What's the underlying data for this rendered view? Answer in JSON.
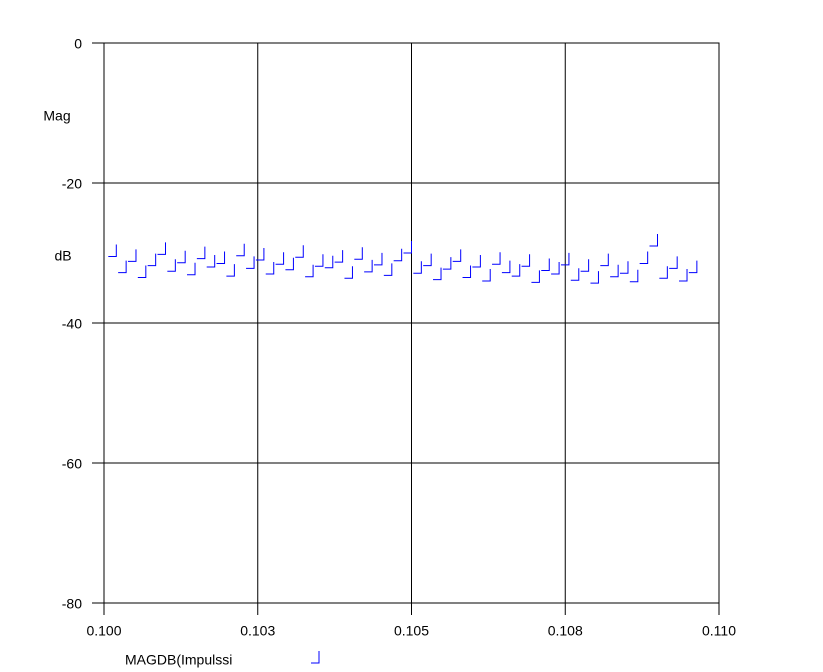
{
  "chart_data": {
    "type": "scatter",
    "y_label_top": "Mag",
    "y_label_bottom": "dB",
    "xlim": [
      0.1,
      0.11
    ],
    "xticks": [
      {
        "value": 0.1,
        "label": "0.100"
      },
      {
        "value": 0.1025,
        "label": "0.103"
      },
      {
        "value": 0.105,
        "label": "0.105"
      },
      {
        "value": 0.1075,
        "label": "0.108"
      },
      {
        "value": 0.11,
        "label": "0.110"
      }
    ],
    "ylim": [
      -80,
      0
    ],
    "yticks": [
      -80,
      -60,
      -40,
      -20,
      0
    ],
    "grid": true,
    "series": [
      {
        "name": "MAGDB(Impulssi",
        "color": "#0000ff",
        "x": [
          0.1002,
          0.10036,
          0.10052,
          0.10068,
          0.10084,
          0.101,
          0.10116,
          0.10132,
          0.10148,
          0.10164,
          0.1018,
          0.10196,
          0.10212,
          0.10228,
          0.10244,
          0.1026,
          0.10276,
          0.10292,
          0.10308,
          0.10324,
          0.1034,
          0.10356,
          0.10372,
          0.10388,
          0.10404,
          0.1042,
          0.10436,
          0.10452,
          0.10468,
          0.10484,
          0.105,
          0.10516,
          0.10532,
          0.10548,
          0.10564,
          0.1058,
          0.10596,
          0.10612,
          0.10628,
          0.10644,
          0.1066,
          0.10676,
          0.10692,
          0.10708,
          0.10724,
          0.1074,
          0.10756,
          0.10772,
          0.10788,
          0.10804,
          0.1082,
          0.10836,
          0.10852,
          0.10868,
          0.10884,
          0.109,
          0.10916,
          0.10932,
          0.10948,
          0.10964
        ],
        "values": [
          -30.5,
          -32.8,
          -31.2,
          -33.5,
          -31.8,
          -30.2,
          -32.6,
          -31.4,
          -33.1,
          -30.8,
          -32.0,
          -31.5,
          -33.3,
          -30.4,
          -32.2,
          -31.0,
          -33.0,
          -31.6,
          -32.4,
          -30.6,
          -33.4,
          -31.9,
          -32.1,
          -31.3,
          -33.6,
          -30.9,
          -32.7,
          -31.7,
          -33.2,
          -31.1,
          -30.0,
          -32.9,
          -31.8,
          -33.8,
          -32.3,
          -31.2,
          -33.5,
          -32.0,
          -34.0,
          -31.6,
          -32.8,
          -33.3,
          -31.9,
          -34.2,
          -32.5,
          -33.0,
          -31.7,
          -33.9,
          -32.6,
          -34.3,
          -31.8,
          -33.4,
          -32.9,
          -34.1,
          -31.5,
          -29.0,
          -33.6,
          -32.2,
          -34.0,
          -32.8
        ]
      }
    ]
  }
}
